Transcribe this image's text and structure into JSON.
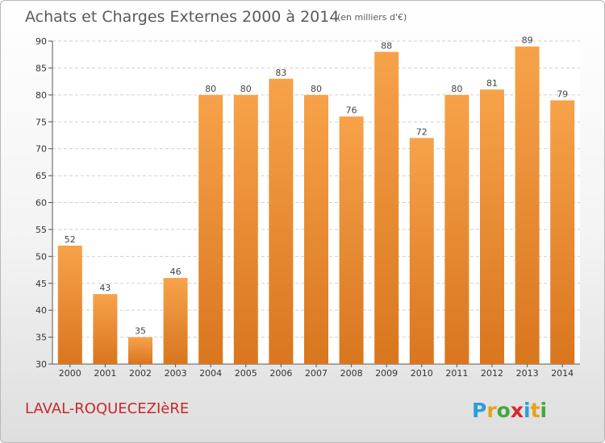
{
  "title": "Achats et Charges Externes 2000 à 2014",
  "subtitle": "(en milliers d'€)",
  "commune": "LAVAL-ROQUECEZIèRE",
  "logo": {
    "letters": [
      "P",
      "r",
      "o",
      "x",
      "i",
      "t",
      "i"
    ],
    "colors": [
      "#2a9fd8",
      "#e8a21a",
      "#45a83a",
      "#d8242a",
      "#2a9fd8",
      "#e8a21a",
      "#45a83a"
    ]
  },
  "colors": {
    "bar_light": "#f7a24a",
    "bar_dark": "#d9761e",
    "commune": "#c8282a",
    "grid": "#cfcfcf"
  },
  "chart_data": {
    "type": "bar",
    "title": "Achats et Charges Externes 2000 à 2014",
    "subtitle": "(en milliers d'€)",
    "xlabel": "",
    "ylabel": "",
    "categories": [
      "2000",
      "2001",
      "2002",
      "2003",
      "2004",
      "2005",
      "2006",
      "2007",
      "2008",
      "2009",
      "2010",
      "2011",
      "2012",
      "2013",
      "2014"
    ],
    "values": [
      52,
      43,
      35,
      46,
      80,
      80,
      83,
      80,
      76,
      88,
      72,
      80,
      81,
      89,
      79
    ],
    "data_labels": [
      "52",
      "43",
      "35",
      "46",
      "80",
      "80",
      "83",
      "80",
      "76",
      "88",
      "72",
      "80",
      "81",
      "89",
      "79"
    ],
    "ylim": [
      30,
      90
    ],
    "yticks": [
      30,
      35,
      40,
      45,
      50,
      55,
      60,
      65,
      70,
      75,
      80,
      85,
      90
    ],
    "ytick_labels": [
      "30",
      "35",
      "40",
      "45",
      "50",
      "55",
      "60",
      "65",
      "70",
      "75",
      "80",
      "85",
      "90"
    ],
    "grid": true,
    "legend": "none"
  }
}
